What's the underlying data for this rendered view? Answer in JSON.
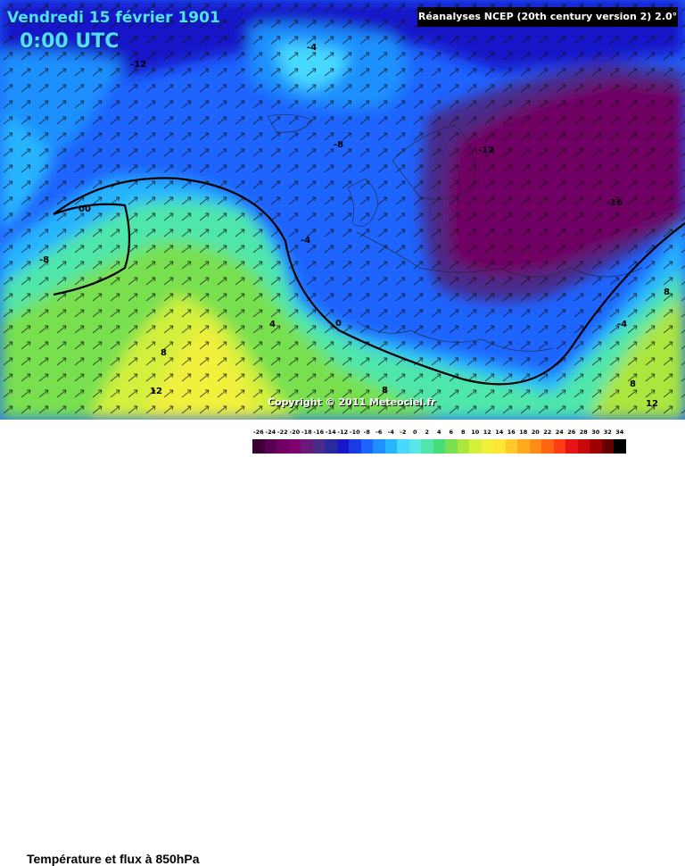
{
  "header": {
    "date": "Vendredi 15 février 1901",
    "time": "0:00 UTC",
    "source": "Réanalyses NCEP (20th century version 2) 2.0°"
  },
  "footer": {
    "caption": "Température et flux à 850hPa",
    "copyright": "Copyright © 2011 Meteociel.fr"
  },
  "isotherm_labels": [
    {
      "text": "-12"
    },
    {
      "text": "-4"
    },
    {
      "text": "-8"
    },
    {
      "text": "-12"
    },
    {
      "text": "-16"
    },
    {
      "text": "00"
    },
    {
      "text": "-8"
    },
    {
      "text": "-4"
    },
    {
      "text": "4"
    },
    {
      "text": "0"
    },
    {
      "text": "8"
    },
    {
      "text": "12"
    },
    {
      "text": "8"
    },
    {
      "text": "-4"
    },
    {
      "text": "8"
    },
    {
      "text": "8"
    },
    {
      "text": "12"
    }
  ],
  "legend": {
    "labels": [
      "-26",
      "-24",
      "-22",
      "-20",
      "-18",
      "-16",
      "-14",
      "-12",
      "-10",
      "-8",
      "-6",
      "-4",
      "-2",
      "0",
      "2",
      "4",
      "6",
      "8",
      "10",
      "12",
      "14",
      "16",
      "18",
      "20",
      "22",
      "24",
      "26",
      "28",
      "30",
      "32",
      "34"
    ],
    "colors": [
      "#3c0032",
      "#5a0050",
      "#700064",
      "#800070",
      "#6a1a7a",
      "#4a2a8a",
      "#2a2a9a",
      "#1818c8",
      "#1a3ae6",
      "#1e64ff",
      "#1e90ff",
      "#28b4ff",
      "#46d8ff",
      "#5ae6e6",
      "#50e6aa",
      "#46dc78",
      "#78e050",
      "#aae63c",
      "#d2f03c",
      "#f0f03c",
      "#ffe632",
      "#ffc828",
      "#ffaa1e",
      "#ff8c14",
      "#ff6414",
      "#ff3c14",
      "#e61414",
      "#c80a0a",
      "#a00000",
      "#640000",
      "#000000"
    ]
  }
}
